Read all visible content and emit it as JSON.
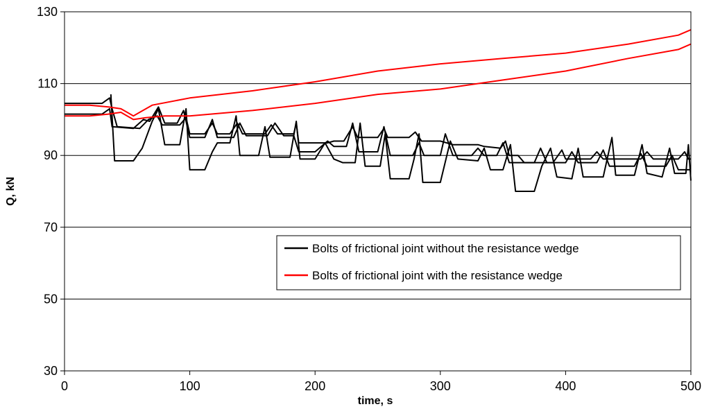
{
  "chart_data": {
    "type": "line",
    "xlabel": "time, s",
    "ylabel": "Q, kN",
    "xlim": [
      0,
      500
    ],
    "ylim": [
      30,
      130
    ],
    "x_ticks": [
      "0",
      "100",
      "200",
      "300",
      "400",
      "500"
    ],
    "y_ticks": [
      "30",
      "50",
      "70",
      "90",
      "110",
      "130"
    ],
    "grid": "horizontal major gridlines",
    "legend_position": "center-right, inside plot",
    "series": [
      {
        "name": "Bolts of frictional joint without the resistance wedge",
        "color": "#000000",
        "lines": [
          [
            [
              0,
              104.5
            ],
            [
              30,
              104.5
            ],
            [
              36,
              106
            ],
            [
              38,
              103
            ],
            [
              42,
              98
            ],
            [
              60,
              97.5
            ],
            [
              67,
              100
            ],
            [
              74,
              101
            ],
            [
              78,
              98.5
            ],
            [
              92,
              98.5
            ],
            [
              97,
              100.5
            ],
            [
              100,
              96
            ],
            [
              112,
              96
            ],
            [
              118,
              99
            ],
            [
              122,
              96
            ],
            [
              132,
              96
            ],
            [
              138,
              99
            ],
            [
              142,
              96
            ],
            [
              160,
              96
            ],
            [
              165,
              98.5
            ],
            [
              170,
              96
            ],
            [
              183,
              96
            ],
            [
              185,
              99
            ],
            [
              187,
              93.5
            ],
            [
              210,
              93.5
            ],
            [
              215,
              94
            ],
            [
              223,
              94
            ],
            [
              230,
              98
            ],
            [
              234,
              95
            ],
            [
              250,
              95
            ],
            [
              255,
              97.5
            ],
            [
              258,
              95
            ],
            [
              275,
              95
            ],
            [
              280,
              96.5
            ],
            [
              285,
              94
            ],
            [
              300,
              94
            ],
            [
              310,
              93
            ],
            [
              330,
              93
            ],
            [
              335,
              92.5
            ],
            [
              348,
              92
            ],
            [
              352,
              94
            ],
            [
              355,
              90
            ],
            [
              362,
              90
            ],
            [
              367,
              88
            ],
            [
              390,
              88
            ],
            [
              397,
              91.5
            ],
            [
              400,
              89
            ],
            [
              420,
              89
            ],
            [
              425,
              91
            ],
            [
              430,
              89
            ],
            [
              460,
              89
            ],
            [
              465,
              91
            ],
            [
              470,
              89
            ],
            [
              490,
              89
            ],
            [
              495,
              91
            ],
            [
              498,
              89
            ],
            [
              500,
              89
            ]
          ],
          [
            [
              0,
              101.5
            ],
            [
              30,
              101.5
            ],
            [
              36,
              103
            ],
            [
              38,
              98
            ],
            [
              55,
              97.5
            ],
            [
              63,
              100
            ],
            [
              68,
              99.5
            ],
            [
              75,
              103.5
            ],
            [
              80,
              99
            ],
            [
              90,
              99
            ],
            [
              95,
              102.5
            ],
            [
              100,
              95
            ],
            [
              112,
              95
            ],
            [
              118,
              100
            ],
            [
              122,
              95
            ],
            [
              135,
              95
            ],
            [
              140,
              99
            ],
            [
              145,
              95.5
            ],
            [
              162,
              95.5
            ],
            [
              168,
              99
            ],
            [
              175,
              95.5
            ],
            [
              183,
              95.5
            ],
            [
              187,
              91
            ],
            [
              200,
              91
            ],
            [
              210,
              94
            ],
            [
              215,
              92.5
            ],
            [
              225,
              92.5
            ],
            [
              230,
              99
            ],
            [
              235,
              91
            ],
            [
              250,
              91
            ],
            [
              255,
              98
            ],
            [
              260,
              90
            ],
            [
              278,
              90
            ],
            [
              283,
              93.5
            ],
            [
              287,
              90
            ],
            [
              300,
              90
            ],
            [
              304,
              96
            ],
            [
              310,
              90
            ],
            [
              325,
              90
            ],
            [
              330,
              92
            ],
            [
              335,
              90
            ],
            [
              345,
              90
            ],
            [
              350,
              93.5
            ],
            [
              355,
              88
            ],
            [
              375,
              88
            ],
            [
              380,
              92
            ],
            [
              385,
              88
            ],
            [
              400,
              88
            ],
            [
              405,
              91
            ],
            [
              410,
              88
            ],
            [
              425,
              88
            ],
            [
              430,
              91.5
            ],
            [
              435,
              87
            ],
            [
              455,
              87
            ],
            [
              460,
              90.5
            ],
            [
              465,
              87
            ],
            [
              480,
              87
            ],
            [
              485,
              90
            ],
            [
              490,
              86
            ],
            [
              500,
              86
            ]
          ],
          [
            [
              37,
              107
            ],
            [
              40,
              88.5
            ],
            [
              55,
              88.5
            ],
            [
              62,
              92
            ],
            [
              70,
              99.5
            ],
            [
              75,
              103
            ],
            [
              80,
              93
            ],
            [
              92,
              93
            ],
            [
              97,
              103
            ],
            [
              100,
              86
            ],
            [
              112,
              86
            ],
            [
              118,
              91
            ],
            [
              122,
              93.5
            ],
            [
              132,
              93.5
            ],
            [
              137,
              101
            ],
            [
              140,
              90
            ],
            [
              155,
              90
            ],
            [
              160,
              98
            ],
            [
              164,
              89.5
            ],
            [
              180,
              89.5
            ],
            [
              185,
              99.5
            ],
            [
              188,
              89
            ],
            [
              200,
              89
            ],
            [
              208,
              93.5
            ],
            [
              215,
              89
            ],
            [
              222,
              88
            ],
            [
              232,
              88
            ],
            [
              236,
              99
            ],
            [
              240,
              87
            ],
            [
              252,
              87
            ],
            [
              256,
              96
            ],
            [
              260,
              83.5
            ],
            [
              275,
              83.5
            ],
            [
              279,
              89
            ],
            [
              283,
              96
            ],
            [
              286,
              82.5
            ],
            [
              300,
              82.5
            ],
            [
              308,
              94
            ],
            [
              314,
              89
            ],
            [
              330,
              88.5
            ],
            [
              335,
              92
            ],
            [
              340,
              86
            ],
            [
              350,
              86
            ],
            [
              356,
              93
            ],
            [
              360,
              80
            ],
            [
              375,
              80
            ],
            [
              381,
              87
            ],
            [
              388,
              92
            ],
            [
              393,
              84
            ],
            [
              405,
              83.5
            ],
            [
              410,
              92
            ],
            [
              414,
              84
            ],
            [
              430,
              84
            ],
            [
              437,
              95
            ],
            [
              440,
              84.5
            ],
            [
              455,
              84.5
            ],
            [
              461,
              93
            ],
            [
              465,
              85
            ],
            [
              477,
              84
            ],
            [
              483,
              92
            ],
            [
              487,
              85
            ],
            [
              496,
              85
            ],
            [
              498,
              93
            ],
            [
              500,
              83
            ]
          ]
        ]
      },
      {
        "name": "Bolts of frictional joint with the resistance wedge",
        "color": "#ff0000",
        "lines": [
          [
            [
              0,
              104
            ],
            [
              20,
              104
            ],
            [
              35,
              103.5
            ],
            [
              45,
              103
            ],
            [
              50,
              102
            ],
            [
              55,
              101
            ],
            [
              60,
              102
            ],
            [
              70,
              104
            ],
            [
              100,
              106
            ],
            [
              150,
              108
            ],
            [
              200,
              110.5
            ],
            [
              250,
              113.5
            ],
            [
              300,
              115.5
            ],
            [
              350,
              117
            ],
            [
              400,
              118.5
            ],
            [
              450,
              121
            ],
            [
              490,
              123.5
            ],
            [
              500,
              125
            ]
          ],
          [
            [
              0,
              101
            ],
            [
              20,
              101
            ],
            [
              35,
              101.5
            ],
            [
              45,
              102
            ],
            [
              50,
              101
            ],
            [
              55,
              100
            ],
            [
              65,
              100.5
            ],
            [
              80,
              101
            ],
            [
              100,
              101
            ],
            [
              150,
              102.5
            ],
            [
              200,
              104.5
            ],
            [
              250,
              107
            ],
            [
              300,
              108.5
            ],
            [
              350,
              111
            ],
            [
              400,
              113.5
            ],
            [
              450,
              117
            ],
            [
              490,
              119.5
            ],
            [
              500,
              121
            ]
          ]
        ]
      }
    ]
  }
}
